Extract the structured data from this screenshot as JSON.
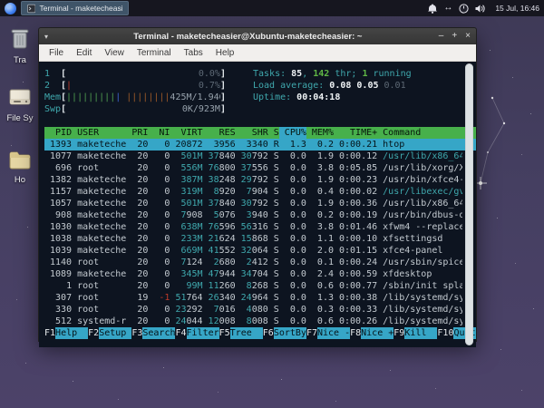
{
  "panel": {
    "task_button": "Terminal - maketecheasier...",
    "clock": "15 Jul, 16:46",
    "tray": [
      "notifications",
      "network",
      "power-manager",
      "volume"
    ]
  },
  "desktop": {
    "icons": [
      {
        "label": "Tra"
      },
      {
        "label": "File Sy"
      },
      {
        "label": "Ho"
      }
    ]
  },
  "window": {
    "title": "Terminal - maketecheasier@Xubuntu-maketecheasier: ~",
    "menu": [
      "File",
      "Edit",
      "View",
      "Terminal",
      "Tabs",
      "Help"
    ],
    "controls": {
      "arrow": "▾",
      "minimize": "–",
      "maximize": "+",
      "close": "×"
    }
  },
  "htop": {
    "cpu1": {
      "label": "1",
      "bar": "",
      "pct": "0.0%"
    },
    "cpu2": {
      "label": "2",
      "bar": "|",
      "pct": "0.7%"
    },
    "mem": {
      "label": "Mem",
      "green": "|||||||||",
      "blue": "|",
      "orange": "||||||||",
      "value": "425M/1.94G"
    },
    "swp": {
      "label": "Swp",
      "value": "0K/923M"
    },
    "tasks": {
      "label": "Tasks: ",
      "count": "85",
      "sep": ", ",
      "threads": "142",
      "thr_label": " thr; ",
      "running": "1",
      "running_label": " running"
    },
    "load": {
      "label": "Load average: ",
      "v1": "0.08 ",
      "v2": "0.05 ",
      "v3": "0.01"
    },
    "uptime": {
      "label": "Uptime: ",
      "value": "00:04:18"
    },
    "columns": [
      "PID",
      "USER",
      "PRI",
      "NI",
      "VIRT",
      "RES",
      "SHR",
      "S",
      "CPU%",
      "MEM%",
      "TIME+",
      "Command"
    ],
    "sort_column": "CPU%",
    "processes": [
      {
        "pid": "1393",
        "user": "maketeche",
        "pri": "20",
        "ni": "0",
        "virt": "20872",
        "res": "3956",
        "shr": "3340",
        "s": "R",
        "cpu": "1.3",
        "mem": "0.2",
        "time": "0:00.21",
        "cmd": "htop",
        "selected": true
      },
      {
        "pid": "1077",
        "user": "maketeche",
        "pri": "20",
        "ni": "0",
        "virt": "501M",
        "res": "37840",
        "shr": "30792",
        "s": "S",
        "cpu": "0.0",
        "mem": "1.9",
        "time": "0:00.12",
        "cmd": "/usr/lib/x86_64",
        "cmd_cyan": true
      },
      {
        "pid": "696",
        "user": "root",
        "pri": "20",
        "ni": "0",
        "virt": "556M",
        "res": "76800",
        "shr": "37556",
        "s": "S",
        "cpu": "0.0",
        "mem": "3.8",
        "time": "0:05.85",
        "cmd": "/usr/lib/xorg/X"
      },
      {
        "pid": "1382",
        "user": "maketeche",
        "pri": "20",
        "ni": "0",
        "virt": "387M",
        "res": "38248",
        "shr": "29792",
        "s": "S",
        "cpu": "0.0",
        "mem": "1.9",
        "time": "0:00.23",
        "cmd": "/usr/bin/xfce4-"
      },
      {
        "pid": "1157",
        "user": "maketeche",
        "pri": "20",
        "ni": "0",
        "virt": "319M",
        "res": "8920",
        "shr": "7904",
        "s": "S",
        "cpu": "0.0",
        "mem": "0.4",
        "time": "0:00.02",
        "cmd": "/usr/libexec/gv",
        "cmd_cyan": true
      },
      {
        "pid": "1057",
        "user": "maketeche",
        "pri": "20",
        "ni": "0",
        "virt": "501M",
        "res": "37840",
        "shr": "30792",
        "s": "S",
        "cpu": "0.0",
        "mem": "1.9",
        "time": "0:00.36",
        "cmd": "/usr/lib/x86_64"
      },
      {
        "pid": "908",
        "user": "maketeche",
        "pri": "20",
        "ni": "0",
        "virt": "7908",
        "res": "5076",
        "shr": "3940",
        "s": "S",
        "cpu": "0.0",
        "mem": "0.2",
        "time": "0:00.19",
        "cmd": "/usr/bin/dbus-d"
      },
      {
        "pid": "1030",
        "user": "maketeche",
        "pri": "20",
        "ni": "0",
        "virt": "638M",
        "res": "76596",
        "shr": "56316",
        "s": "S",
        "cpu": "0.0",
        "mem": "3.8",
        "time": "0:01.46",
        "cmd": "xfwm4 --replace"
      },
      {
        "pid": "1038",
        "user": "maketeche",
        "pri": "20",
        "ni": "0",
        "virt": "233M",
        "res": "21624",
        "shr": "15868",
        "s": "S",
        "cpu": "0.0",
        "mem": "1.1",
        "time": "0:00.10",
        "cmd": "xfsettingsd"
      },
      {
        "pid": "1039",
        "user": "maketeche",
        "pri": "20",
        "ni": "0",
        "virt": "669M",
        "res": "41552",
        "shr": "32064",
        "s": "S",
        "cpu": "0.0",
        "mem": "2.0",
        "time": "0:01.15",
        "cmd": "xfce4-panel"
      },
      {
        "pid": "1140",
        "user": "root",
        "pri": "20",
        "ni": "0",
        "virt": "7124",
        "res": "2680",
        "shr": "2412",
        "s": "S",
        "cpu": "0.0",
        "mem": "0.1",
        "time": "0:00.24",
        "cmd": "/usr/sbin/spice"
      },
      {
        "pid": "1089",
        "user": "maketeche",
        "pri": "20",
        "ni": "0",
        "virt": "345M",
        "res": "47944",
        "shr": "34704",
        "s": "S",
        "cpu": "0.0",
        "mem": "2.4",
        "time": "0:00.59",
        "cmd": "xfdesktop"
      },
      {
        "pid": "1",
        "user": "root",
        "pri": "20",
        "ni": "0",
        "virt": "99M",
        "res": "11260",
        "shr": "8268",
        "s": "S",
        "cpu": "0.0",
        "mem": "0.6",
        "time": "0:00.77",
        "cmd": "/sbin/init spla"
      },
      {
        "pid": "307",
        "user": "root",
        "pri": "19",
        "ni": "-1",
        "virt": "51764",
        "res": "26340",
        "shr": "24964",
        "s": "S",
        "cpu": "0.0",
        "mem": "1.3",
        "time": "0:00.38",
        "cmd": "/lib/systemd/sy"
      },
      {
        "pid": "330",
        "user": "root",
        "pri": "20",
        "ni": "0",
        "virt": "23292",
        "res": "7016",
        "shr": "4080",
        "s": "S",
        "cpu": "0.0",
        "mem": "0.3",
        "time": "0:00.33",
        "cmd": "/lib/systemd/sy"
      },
      {
        "pid": "512",
        "user": "systemd-r",
        "pri": "20",
        "ni": "0",
        "virt": "24044",
        "res": "12008",
        "shr": "8008",
        "s": "S",
        "cpu": "0.0",
        "mem": "0.6",
        "time": "0:00.26",
        "cmd": "/lib/systemd/sy"
      }
    ],
    "fkeys": [
      {
        "key": "F1",
        "label": "Help  "
      },
      {
        "key": "F2",
        "label": "Setup "
      },
      {
        "key": "F3",
        "label": "Search"
      },
      {
        "key": "F4",
        "label": "Filter"
      },
      {
        "key": "F5",
        "label": "Tree  "
      },
      {
        "key": "F6",
        "label": "SortBy"
      },
      {
        "key": "F7",
        "label": "Nice -"
      },
      {
        "key": "F8",
        "label": "Nice +"
      },
      {
        "key": "F9",
        "label": "Kill  "
      },
      {
        "key": "F10",
        "label": "Quit  "
      }
    ]
  },
  "colors": {
    "accent_cyan": "#36a6c7",
    "header_green": "#47b04b",
    "text_cyan": "#3fa8ad",
    "text_green": "#5fb645",
    "text_red": "#c13a2a",
    "terminal_bg": "#0d1420",
    "desktop_purple": "#464060"
  }
}
